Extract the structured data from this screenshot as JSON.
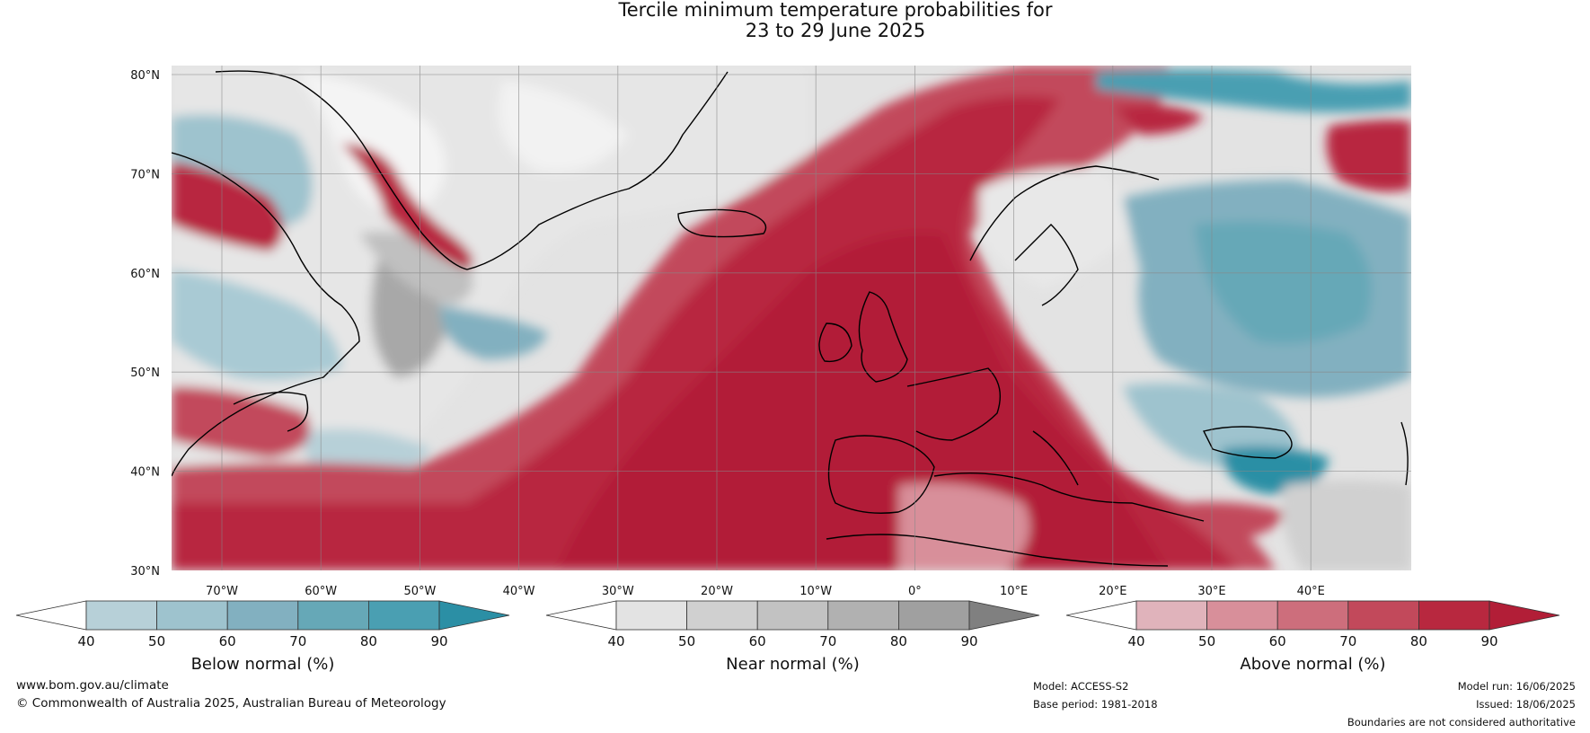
{
  "title": {
    "line1": "Tercile minimum temperature probabilities for",
    "line2": "23 to 29 June 2025"
  },
  "map": {
    "lat_labels": [
      "80°N",
      "70°N",
      "60°N",
      "50°N",
      "40°N",
      "30°N"
    ],
    "lon_labels": [
      "70°W",
      "60°W",
      "50°W",
      "40°W",
      "30°W",
      "20°W",
      "10°W",
      "0°",
      "10°E",
      "20°E",
      "30°E",
      "40°E"
    ],
    "grid": true
  },
  "legends": [
    {
      "label": "Below normal (%)",
      "ticks": [
        "40",
        "50",
        "60",
        "70",
        "80",
        "90"
      ],
      "colors": [
        "#ffffff",
        "#b7d0d8",
        "#9ec3ce",
        "#82b0c0",
        "#66a8b7",
        "#4a9fb2",
        "#2b8fa5"
      ]
    },
    {
      "label": "Near normal (%)",
      "ticks": [
        "40",
        "50",
        "60",
        "70",
        "80",
        "90"
      ],
      "colors": [
        "#ffffff",
        "#e3e3e3",
        "#d0d0d0",
        "#c2c2c2",
        "#b1b1b1",
        "#a0a0a0",
        "#808080"
      ]
    },
    {
      "label": "Above normal (%)",
      "ticks": [
        "40",
        "50",
        "60",
        "70",
        "80",
        "90"
      ],
      "colors": [
        "#ffffff",
        "#e0b3bb",
        "#d88f9a",
        "#cd6e7c",
        "#c2495b",
        "#b8283f",
        "#b21e37"
      ]
    }
  ],
  "footer": {
    "website": "www.bom.gov.au/climate",
    "copyright": "© Commonwealth of Australia 2025, Australian Bureau of Meteorology",
    "model": "Model: ACCESS-S2",
    "base_period": "Base period: 1981-2018",
    "model_run": "Model run: 16/06/2025",
    "issued": "Issued: 18/06/2025",
    "disclaimer": "Boundaries are not considered authoritative"
  }
}
